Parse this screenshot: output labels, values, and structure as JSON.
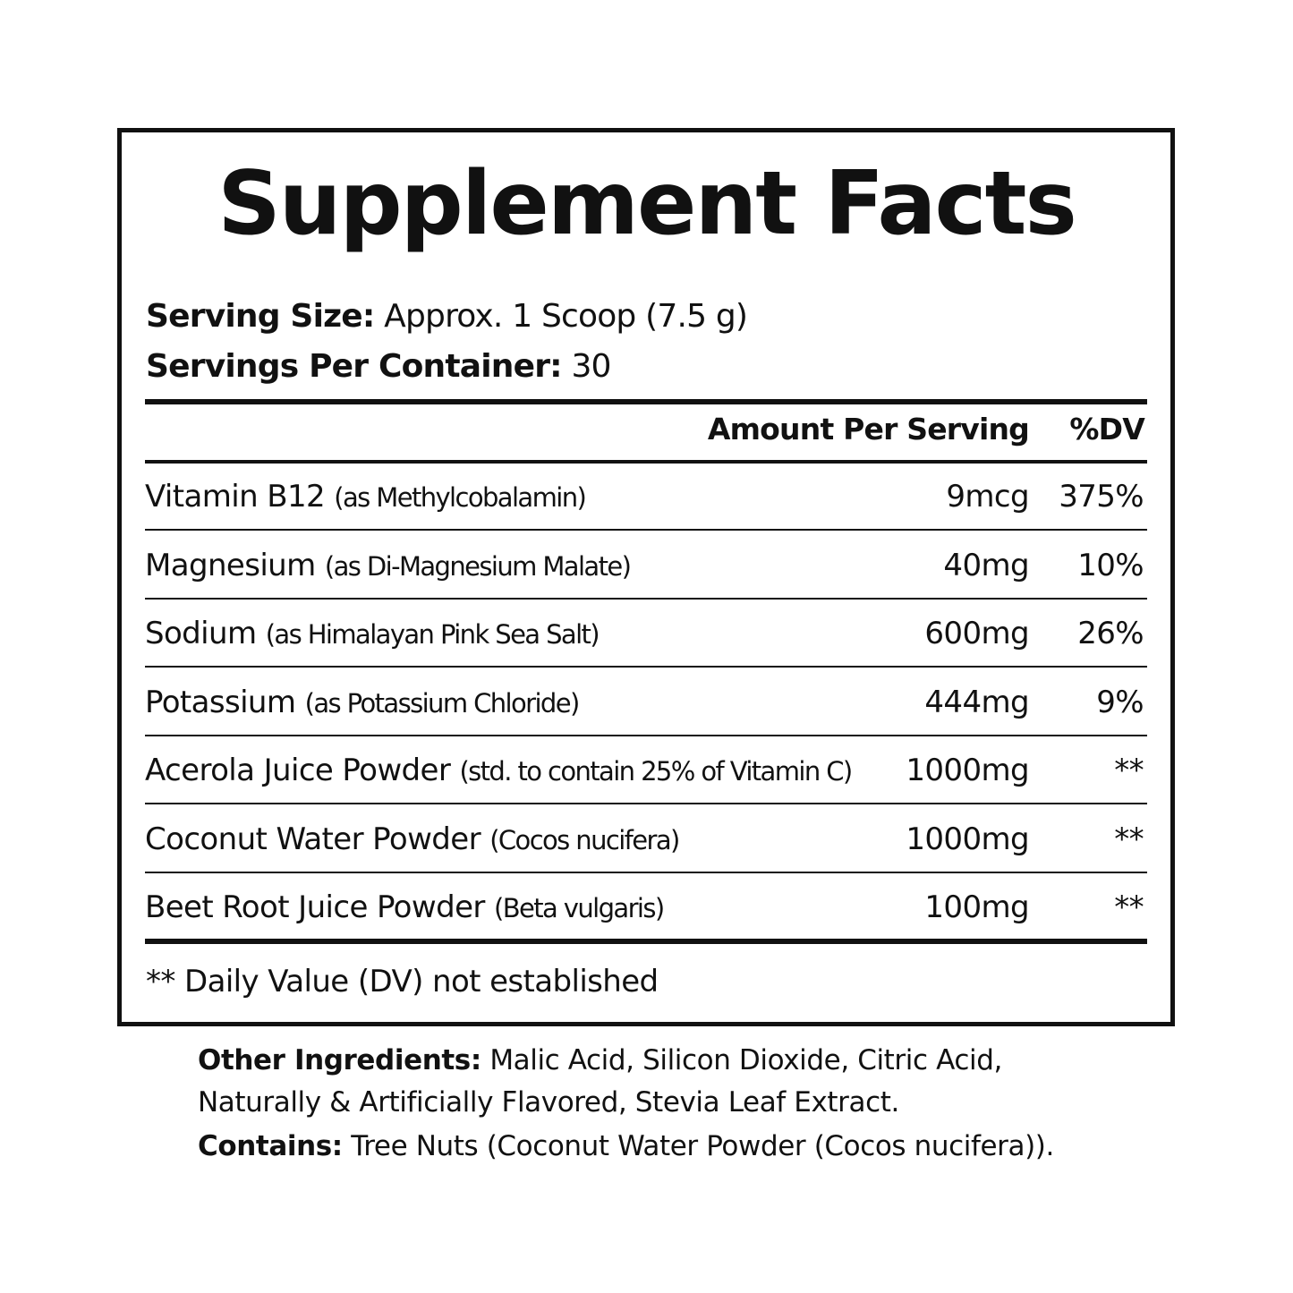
{
  "title": "Supplement Facts",
  "serving_size": {
    "label": "Serving Size:",
    "value": "Approx. 1 Scoop (7.5 g)"
  },
  "servings_per_container": {
    "label": "Servings Per Container:",
    "value": "30"
  },
  "header": {
    "amount": "Amount Per Serving",
    "dv": "%DV"
  },
  "rows": [
    {
      "name": "Vitamin B12",
      "sub": "(as Methylcobalamin)",
      "amount": "9mcg",
      "dv": "375%"
    },
    {
      "name": "Magnesium",
      "sub": "(as Di-Magnesium Malate)",
      "amount": "40mg",
      "dv": "10%"
    },
    {
      "name": "Sodium",
      "sub": "(as Himalayan Pink Sea Salt)",
      "amount": "600mg",
      "dv": "26%"
    },
    {
      "name": "Potassium",
      "sub": "(as Potassium Chloride)",
      "amount": "444mg",
      "dv": "9%"
    },
    {
      "name": "Acerola Juice Powder",
      "sub": "(std. to contain 25% of Vitamin C)",
      "amount": "1000mg",
      "dv": "**"
    },
    {
      "name": "Coconut Water Powder",
      "sub": "(Cocos nucifera)",
      "amount": "1000mg",
      "dv": "**"
    },
    {
      "name": "Beet Root Juice Powder",
      "sub": "(Beta vulgaris)",
      "amount": "100mg",
      "dv": "**"
    }
  ],
  "footnote": "** Daily Value (DV) not established",
  "other_ingredients": {
    "label": "Other Ingredients:",
    "line1": "Malic Acid, Silicon Dioxide, Citric Acid,",
    "line2": "Naturally & Artificially Flavored, Stevia Leaf Extract."
  },
  "contains": {
    "label": "Contains:",
    "value": "Tree Nuts (Coconut Water Powder (Cocos nucifera))."
  }
}
